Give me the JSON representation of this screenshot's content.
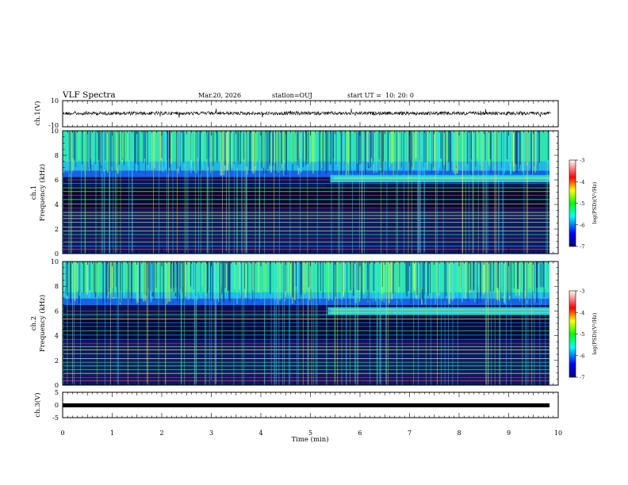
{
  "header": {
    "title": "VLF Spectra",
    "date": "Mar.20, 2026",
    "station": "station=OUJ",
    "start_ut": "start UT =  10: 20: 0"
  },
  "chart_data": [
    {
      "type": "line",
      "panel": "ch1-waveform",
      "ylabel": "ch.1(V)",
      "ylim": [
        -10,
        10
      ],
      "y_ticks": [
        "10",
        "-10"
      ],
      "baseline": 0
    },
    {
      "type": "heatmap",
      "panel": "ch1-spectrogram",
      "ylabel": "Frequency (kHz)",
      "ylabel_prefix": "ch.1",
      "ylim": [
        0,
        10
      ],
      "y_ticks": [
        "0",
        "2",
        "4",
        "6",
        "8",
        "10"
      ],
      "hiss_band_khz": [
        6.3,
        10
      ],
      "emission_band_khz": [
        5.8,
        6.4
      ],
      "emission_start_min": 5.4,
      "colorbar": {
        "label": "log(PSD)(V²/Hz)",
        "ticks": [
          "-3",
          "-4",
          "-5",
          "-6",
          "-7"
        ],
        "range": [
          -7,
          -3
        ]
      }
    },
    {
      "type": "heatmap",
      "panel": "ch2-spectrogram",
      "ylabel": "Frequency (kHz)",
      "ylabel_prefix": "ch.2",
      "ylim": [
        0,
        10
      ],
      "y_ticks": [
        "0",
        "2",
        "4",
        "6",
        "8",
        "10"
      ],
      "hiss_band_khz": [
        6.5,
        10
      ],
      "emission_band_khz": [
        5.7,
        6.3
      ],
      "emission_start_min": 5.35,
      "colorbar": {
        "label": "log(PSD)(V²/Hz)",
        "ticks": [
          "-3",
          "-4",
          "-5",
          "-6",
          "-7"
        ],
        "range": [
          -7,
          -3
        ]
      }
    },
    {
      "type": "line",
      "panel": "ch3-waveform",
      "ylabel": "ch.3(V)",
      "ylim": [
        -5,
        5
      ],
      "y_ticks": [
        "5",
        "0",
        "-5"
      ],
      "baseline": -1.4
    }
  ],
  "x_axis": {
    "label": "Time (min)",
    "range": [
      0,
      10
    ],
    "ticks": [
      "0",
      "1",
      "2",
      "3",
      "4",
      "5",
      "6",
      "7",
      "8",
      "9",
      "10"
    ],
    "data_end_min": 9.85
  },
  "colors": {
    "background": "#ffffff",
    "axis": "#000000",
    "spectrogram_low": "#00002a",
    "spectrogram_mid": "#1040ff",
    "spectrogram_high": "#30f0b0",
    "colorbar_stops": [
      "#000080",
      "#0000ff",
      "#00ffff",
      "#00ff00",
      "#ffff00",
      "#ff0000",
      "#ffffff"
    ]
  }
}
